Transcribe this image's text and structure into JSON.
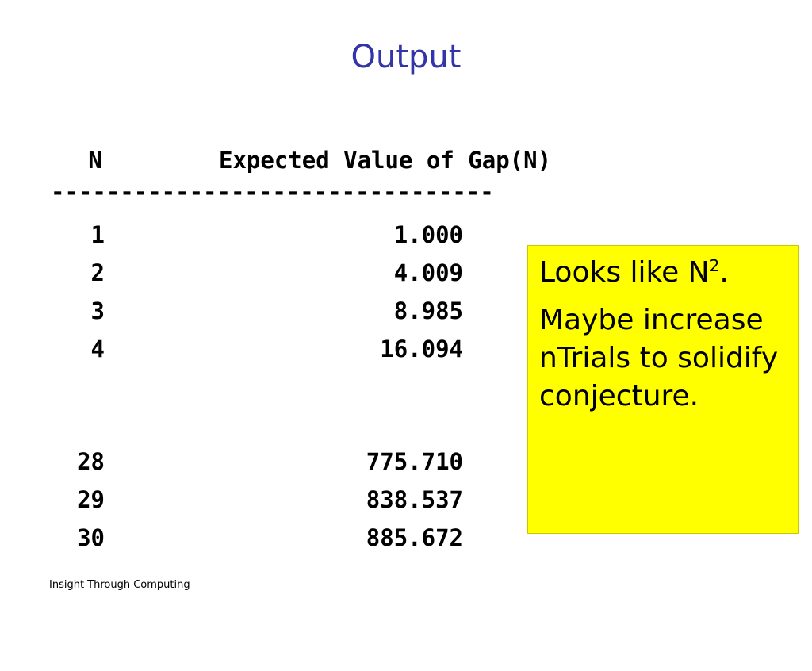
{
  "slide": {
    "title": "Output",
    "footer": "Insight Through Computing"
  },
  "table": {
    "header_n": "N",
    "header_value": "Expected Value of Gap(N)",
    "separator": "--------------------------------",
    "rows": [
      {
        "n": "1",
        "value": "1.000"
      },
      {
        "n": "2",
        "value": "4.009"
      },
      {
        "n": "3",
        "value": "8.985"
      },
      {
        "n": "4",
        "value": "16.094"
      },
      {
        "n": "28",
        "value": "775.710"
      },
      {
        "n": "29",
        "value": "838.537"
      },
      {
        "n": "30",
        "value": "885.672"
      }
    ]
  },
  "note": {
    "line1_prefix": "Looks like N",
    "line1_superscript": "2",
    "line1_suffix": ".",
    "line2": "Maybe increase nTrials to solidify conjecture.",
    "background": "#ffff00"
  }
}
